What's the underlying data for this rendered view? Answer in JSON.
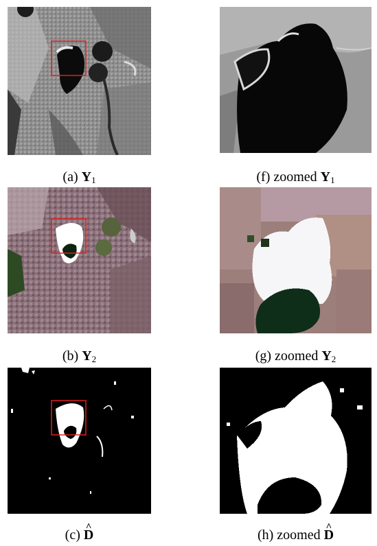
{
  "figure": {
    "panels": [
      {
        "id": "a",
        "image": "Y1 grayscale satellite scene with red box",
        "caption": {
          "prefix": "(a) ",
          "symbol": "Y",
          "subscript": "1"
        }
      },
      {
        "id": "f",
        "image": "zoomed Y1 grayscale crop",
        "caption": {
          "prefix": "(f) zoomed ",
          "symbol": "Y",
          "subscript": "1"
        }
      },
      {
        "id": "b",
        "image": "Y2 color satellite scene with red box",
        "caption": {
          "prefix": "(b) ",
          "symbol": "Y",
          "subscript": "2"
        }
      },
      {
        "id": "g",
        "image": "zoomed Y2 color crop",
        "caption": {
          "prefix": "(g) zoomed ",
          "symbol": "Y",
          "subscript": "2"
        }
      },
      {
        "id": "c",
        "image": "binary change map D-hat with red box",
        "caption": {
          "prefix": "(c) ",
          "symbol": "D",
          "subscript": ""
        }
      },
      {
        "id": "h",
        "image": "zoomed binary change map crop",
        "caption": {
          "prefix": "(h) zoomed ",
          "symbol": "D",
          "subscript": ""
        }
      }
    ],
    "colors": {
      "box": "#e0201e",
      "lake": "#0b0b0b",
      "white_area": "#ffffff"
    }
  }
}
